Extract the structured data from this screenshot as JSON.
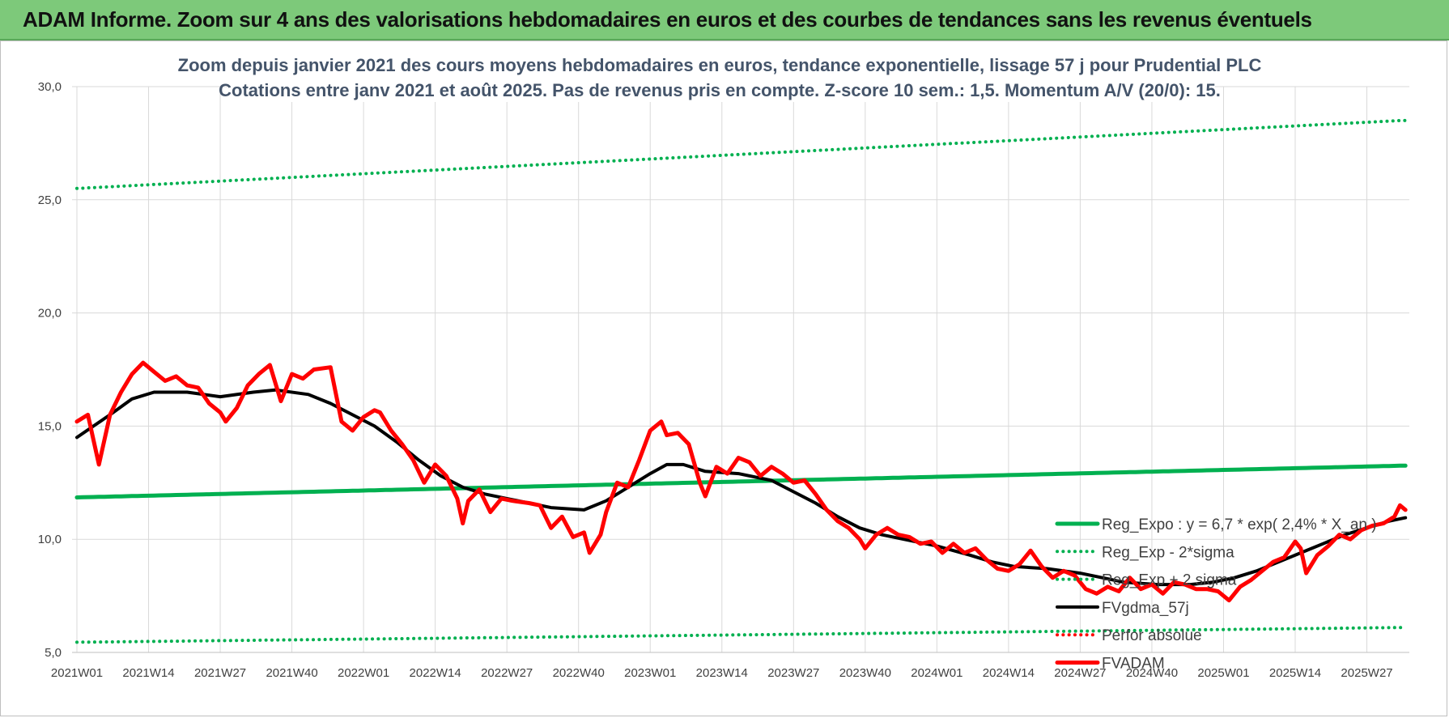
{
  "header": {
    "title": "ADAM Informe. Zoom sur 4 ans des valorisations hebdomadaires en euros et des courbes de tendances sans les revenus éventuels"
  },
  "chart_data": {
    "type": "line",
    "title_lines": [
      "Zoom depuis janvier 2021 des cours moyens hebdomadaires en euros, tendance exponentielle, lissage 57 j pour Prudential PLC",
      "Cotations entre janv 2021 et août 2025.  Pas de revenus pris en compte. Z-score 10 sem.: 1,5. Momentum A/V (20/0): 15."
    ],
    "ylim": [
      5,
      30
    ],
    "y_ticks": [
      "5,0",
      "10,0",
      "15,0",
      "20,0",
      "25,0",
      "30,0"
    ],
    "y_tick_values": [
      5,
      10,
      15,
      20,
      25,
      30
    ],
    "n_weeks": 190,
    "x_ticks": [
      "2021W01",
      "2021W14",
      "2021W27",
      "2021W40",
      "2022W01",
      "2022W14",
      "2022W27",
      "2022W40",
      "2023W01",
      "2023W14",
      "2023W27",
      "2023W40",
      "2024W01",
      "2024W14",
      "2024W27",
      "2024W40",
      "2025W01",
      "2025W14",
      "2025W27"
    ],
    "x_tick_index": [
      0,
      13,
      26,
      39,
      52,
      65,
      78,
      91,
      104,
      117,
      130,
      143,
      156,
      169,
      182,
      195,
      208,
      221,
      234
    ],
    "grid": true,
    "legend_position": "right",
    "series": [
      {
        "name": "Reg_Expo : y = 6,7 * exp( 2,4% *  X_an )",
        "color": "#00b050",
        "style": "solid",
        "width": 5,
        "anchors": [
          [
            0,
            11.85
          ],
          [
            240,
            13.25
          ]
        ]
      },
      {
        "name": "Reg_Exp - 2*sigma",
        "color": "#00b050",
        "style": "dotted",
        "width": 4,
        "anchors": [
          [
            0,
            5.45
          ],
          [
            240,
            6.1
          ]
        ]
      },
      {
        "name": "Reg_Exp + 2 sigma",
        "color": "#00b050",
        "style": "dotted",
        "width": 4,
        "anchors": [
          [
            0,
            25.5
          ],
          [
            240,
            28.5
          ]
        ]
      },
      {
        "name": "FVgdma_57j",
        "color": "#000000",
        "style": "solid",
        "width": 4,
        "anchors": [
          [
            0,
            14.5
          ],
          [
            3,
            15.0
          ],
          [
            6,
            15.5
          ],
          [
            10,
            16.2
          ],
          [
            14,
            16.5
          ],
          [
            20,
            16.5
          ],
          [
            26,
            16.3
          ],
          [
            32,
            16.5
          ],
          [
            36,
            16.6
          ],
          [
            42,
            16.4
          ],
          [
            46,
            16.0
          ],
          [
            50,
            15.5
          ],
          [
            54,
            15.0
          ],
          [
            58,
            14.3
          ],
          [
            62,
            13.5
          ],
          [
            66,
            12.8
          ],
          [
            70,
            12.3
          ],
          [
            74,
            12.0
          ],
          [
            78,
            11.8
          ],
          [
            82,
            11.6
          ],
          [
            86,
            11.4
          ],
          [
            92,
            11.3
          ],
          [
            96,
            11.7
          ],
          [
            100,
            12.3
          ],
          [
            104,
            12.9
          ],
          [
            107,
            13.3
          ],
          [
            110,
            13.3
          ],
          [
            114,
            13.0
          ],
          [
            120,
            12.9
          ],
          [
            126,
            12.6
          ],
          [
            130,
            12.1
          ],
          [
            134,
            11.6
          ],
          [
            138,
            11.0
          ],
          [
            142,
            10.5
          ],
          [
            146,
            10.2
          ],
          [
            150,
            10.0
          ],
          [
            156,
            9.7
          ],
          [
            162,
            9.3
          ],
          [
            166,
            9.0
          ],
          [
            170,
            8.8
          ],
          [
            176,
            8.7
          ],
          [
            182,
            8.5
          ],
          [
            186,
            8.3
          ],
          [
            190,
            8.1
          ],
          [
            196,
            8.0
          ],
          [
            202,
            8.0
          ],
          [
            206,
            8.1
          ],
          [
            210,
            8.3
          ],
          [
            214,
            8.6
          ],
          [
            218,
            9.0
          ],
          [
            222,
            9.4
          ],
          [
            226,
            9.8
          ],
          [
            230,
            10.2
          ],
          [
            234,
            10.5
          ],
          [
            238,
            10.8
          ],
          [
            241,
            10.95
          ]
        ]
      },
      {
        "name": "Perfor absolue",
        "color": "#ff0000",
        "style": "dotted",
        "width": 4,
        "anchors": []
      },
      {
        "name": "FVADAM",
        "color": "#ff0000",
        "style": "solid",
        "width": 5,
        "anchors": [
          [
            0,
            15.2
          ],
          [
            2,
            15.5
          ],
          [
            4,
            13.3
          ],
          [
            6,
            15.5
          ],
          [
            8,
            16.5
          ],
          [
            10,
            17.3
          ],
          [
            12,
            17.8
          ],
          [
            14,
            17.4
          ],
          [
            16,
            17.0
          ],
          [
            18,
            17.2
          ],
          [
            20,
            16.8
          ],
          [
            22,
            16.7
          ],
          [
            24,
            16.0
          ],
          [
            26,
            15.6
          ],
          [
            27,
            15.2
          ],
          [
            29,
            15.8
          ],
          [
            31,
            16.8
          ],
          [
            33,
            17.3
          ],
          [
            35,
            17.7
          ],
          [
            37,
            16.1
          ],
          [
            39,
            17.3
          ],
          [
            41,
            17.1
          ],
          [
            43,
            17.5
          ],
          [
            46,
            17.6
          ],
          [
            48,
            15.2
          ],
          [
            50,
            14.8
          ],
          [
            52,
            15.4
          ],
          [
            54,
            15.7
          ],
          [
            55,
            15.6
          ],
          [
            57,
            14.8
          ],
          [
            59,
            14.2
          ],
          [
            61,
            13.5
          ],
          [
            63,
            12.5
          ],
          [
            65,
            13.3
          ],
          [
            67,
            12.8
          ],
          [
            69,
            11.8
          ],
          [
            70,
            10.7
          ],
          [
            71,
            11.7
          ],
          [
            73,
            12.2
          ],
          [
            75,
            11.2
          ],
          [
            77,
            11.8
          ],
          [
            79,
            11.7
          ],
          [
            82,
            11.6
          ],
          [
            84,
            11.5
          ],
          [
            86,
            10.5
          ],
          [
            88,
            11.0
          ],
          [
            90,
            10.1
          ],
          [
            92,
            10.3
          ],
          [
            93,
            9.4
          ],
          [
            95,
            10.2
          ],
          [
            96,
            11.2
          ],
          [
            98,
            12.5
          ],
          [
            100,
            12.3
          ],
          [
            102,
            13.5
          ],
          [
            104,
            14.8
          ],
          [
            106,
            15.2
          ],
          [
            107,
            14.6
          ],
          [
            109,
            14.7
          ],
          [
            111,
            14.2
          ],
          [
            113,
            12.5
          ],
          [
            114,
            11.9
          ],
          [
            116,
            13.2
          ],
          [
            118,
            12.9
          ],
          [
            120,
            13.6
          ],
          [
            122,
            13.4
          ],
          [
            124,
            12.8
          ],
          [
            126,
            13.2
          ],
          [
            128,
            12.9
          ],
          [
            130,
            12.5
          ],
          [
            132,
            12.6
          ],
          [
            134,
            12.0
          ],
          [
            136,
            11.3
          ],
          [
            138,
            10.8
          ],
          [
            140,
            10.5
          ],
          [
            142,
            10.0
          ],
          [
            143,
            9.6
          ],
          [
            145,
            10.2
          ],
          [
            147,
            10.5
          ],
          [
            149,
            10.2
          ],
          [
            151,
            10.1
          ],
          [
            153,
            9.8
          ],
          [
            155,
            9.9
          ],
          [
            157,
            9.4
          ],
          [
            159,
            9.8
          ],
          [
            161,
            9.4
          ],
          [
            163,
            9.6
          ],
          [
            165,
            9.1
          ],
          [
            167,
            8.7
          ],
          [
            169,
            8.6
          ],
          [
            171,
            8.9
          ],
          [
            173,
            9.5
          ],
          [
            175,
            8.8
          ],
          [
            177,
            8.3
          ],
          [
            179,
            8.6
          ],
          [
            181,
            8.4
          ],
          [
            183,
            7.8
          ],
          [
            185,
            7.6
          ],
          [
            187,
            7.9
          ],
          [
            189,
            7.7
          ],
          [
            191,
            8.3
          ],
          [
            193,
            7.8
          ],
          [
            195,
            8.0
          ],
          [
            197,
            7.6
          ],
          [
            199,
            8.1
          ],
          [
            201,
            8.0
          ],
          [
            203,
            7.8
          ],
          [
            205,
            7.8
          ],
          [
            207,
            7.7
          ],
          [
            209,
            7.3
          ],
          [
            211,
            7.9
          ],
          [
            213,
            8.2
          ],
          [
            215,
            8.6
          ],
          [
            217,
            9.0
          ],
          [
            219,
            9.2
          ],
          [
            221,
            9.9
          ],
          [
            222,
            9.6
          ],
          [
            223,
            8.5
          ],
          [
            225,
            9.3
          ],
          [
            227,
            9.7
          ],
          [
            229,
            10.2
          ],
          [
            231,
            10.0
          ],
          [
            233,
            10.4
          ],
          [
            235,
            10.6
          ],
          [
            237,
            10.7
          ],
          [
            239,
            11.0
          ],
          [
            240,
            11.5
          ],
          [
            241,
            11.3
          ]
        ]
      }
    ]
  }
}
